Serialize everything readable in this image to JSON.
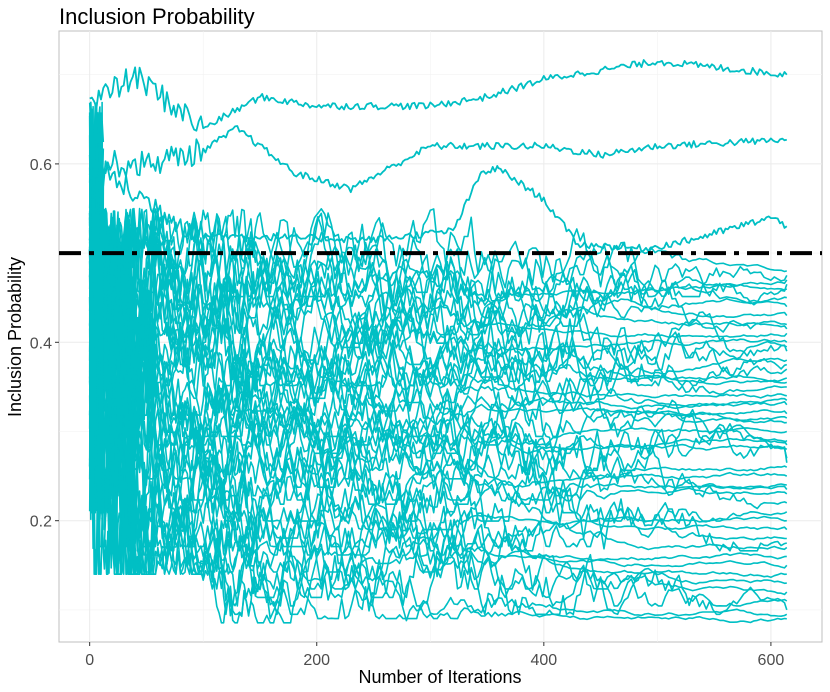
{
  "chart_data": {
    "type": "line",
    "title": "Inclusion Probability",
    "xlabel": "Number of Iterations",
    "ylabel": "Inclusion Probability",
    "xlim": [
      -27,
      645
    ],
    "ylim": [
      0.064,
      0.749
    ],
    "xticks": [
      0,
      200,
      400,
      600
    ],
    "xtick_labels": [
      "0",
      "200",
      "400",
      "600"
    ],
    "yticks": [
      0.2,
      0.4,
      0.6
    ],
    "ytick_labels": [
      "0.2",
      "0.4",
      "0.6"
    ],
    "grid": true,
    "series_color": "#00BFC4",
    "reference_line": {
      "y": 0.5,
      "style": "dash-dot",
      "color": "#000000"
    },
    "n_iterations": 614,
    "highlight_series": [
      {
        "name": "top",
        "values": [
          [
            0,
            0.667
          ],
          [
            40,
            0.698
          ],
          [
            100,
            0.64
          ],
          [
            150,
            0.675
          ],
          [
            200,
            0.665
          ],
          [
            300,
            0.665
          ],
          [
            350,
            0.675
          ],
          [
            400,
            0.695
          ],
          [
            500,
            0.715
          ],
          [
            614,
            0.7
          ]
        ]
      },
      {
        "name": "second",
        "values": [
          [
            0,
            0.6
          ],
          [
            50,
            0.6
          ],
          [
            100,
            0.615
          ],
          [
            130,
            0.64
          ],
          [
            180,
            0.59
          ],
          [
            230,
            0.572
          ],
          [
            300,
            0.62
          ],
          [
            400,
            0.62
          ],
          [
            450,
            0.61
          ],
          [
            500,
            0.62
          ],
          [
            614,
            0.627
          ]
        ]
      },
      {
        "name": "third",
        "values": [
          [
            0,
            0.6
          ],
          [
            60,
            0.55
          ],
          [
            100,
            0.52
          ],
          [
            250,
            0.515
          ],
          [
            320,
            0.525
          ],
          [
            345,
            0.59
          ],
          [
            360,
            0.595
          ],
          [
            400,
            0.56
          ],
          [
            430,
            0.51
          ],
          [
            490,
            0.505
          ],
          [
            530,
            0.515
          ],
          [
            600,
            0.54
          ],
          [
            614,
            0.53
          ]
        ]
      }
    ],
    "bulk_series_final_values": [
      0.48,
      0.475,
      0.47,
      0.465,
      0.46,
      0.45,
      0.44,
      0.43,
      0.42,
      0.415,
      0.41,
      0.4,
      0.395,
      0.39,
      0.38,
      0.375,
      0.37,
      0.36,
      0.355,
      0.35,
      0.34,
      0.335,
      0.33,
      0.32,
      0.315,
      0.31,
      0.3,
      0.29,
      0.285,
      0.28,
      0.27,
      0.265,
      0.26,
      0.25,
      0.24,
      0.235,
      0.23,
      0.22,
      0.21,
      0.2,
      0.19,
      0.18,
      0.175,
      0.17,
      0.16,
      0.15,
      0.14,
      0.13,
      0.12,
      0.11,
      0.1,
      0.095,
      0.09
    ]
  }
}
